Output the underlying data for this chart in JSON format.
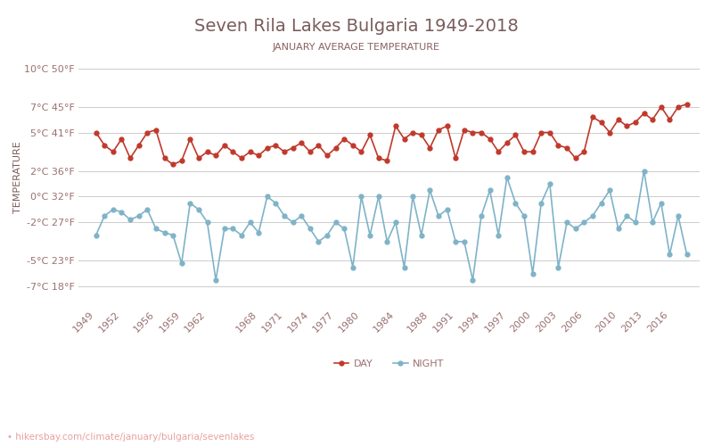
{
  "title": "Seven Rila Lakes Bulgaria 1949-2018",
  "subtitle": "JANUARY AVERAGE TEMPERATURE",
  "ylabel": "TEMPERATURE",
  "footer": "hikersbay.com/climate/january/bulgaria/sevenlakes",
  "years": [
    1949,
    1950,
    1951,
    1952,
    1953,
    1954,
    1955,
    1956,
    1957,
    1958,
    1959,
    1960,
    1961,
    1962,
    1963,
    1964,
    1965,
    1966,
    1967,
    1968,
    1969,
    1970,
    1971,
    1972,
    1973,
    1974,
    1975,
    1976,
    1977,
    1978,
    1979,
    1980,
    1981,
    1982,
    1983,
    1984,
    1985,
    1986,
    1987,
    1988,
    1989,
    1990,
    1991,
    1992,
    1993,
    1994,
    1995,
    1996,
    1997,
    1998,
    1999,
    2000,
    2001,
    2002,
    2003,
    2004,
    2005,
    2006,
    2007,
    2008,
    2009,
    2010,
    2011,
    2012,
    2013,
    2014,
    2015,
    2016,
    2017,
    2018
  ],
  "day_temps": [
    5.0,
    4.0,
    3.5,
    4.5,
    3.0,
    4.0,
    5.0,
    5.2,
    3.0,
    2.5,
    2.8,
    4.5,
    3.0,
    3.5,
    3.2,
    4.0,
    3.5,
    3.0,
    3.5,
    3.2,
    3.8,
    4.0,
    3.5,
    3.8,
    4.2,
    3.5,
    4.0,
    3.2,
    3.8,
    4.5,
    4.0,
    3.5,
    4.8,
    3.0,
    2.8,
    5.5,
    4.5,
    5.0,
    4.8,
    3.8,
    5.2,
    5.5,
    3.0,
    5.2,
    5.0,
    5.0,
    4.5,
    3.5,
    4.2,
    4.8,
    3.5,
    3.5,
    5.0,
    5.0,
    4.0,
    3.8,
    3.0,
    3.5,
    6.2,
    5.8,
    5.0,
    6.0,
    5.5,
    5.8,
    6.5,
    6.0,
    7.0,
    6.0,
    7.0,
    7.2
  ],
  "night_temps": [
    -3.0,
    -1.5,
    -1.0,
    -1.2,
    -1.8,
    -1.5,
    -1.0,
    -2.5,
    -2.8,
    -3.0,
    -5.2,
    -0.5,
    -1.0,
    -2.0,
    -6.5,
    -2.5,
    -2.5,
    -3.0,
    -2.0,
    -2.8,
    0.0,
    -0.5,
    -1.5,
    -2.0,
    -1.5,
    -2.5,
    -3.5,
    -3.0,
    -2.0,
    -2.5,
    -5.5,
    0.0,
    -3.0,
    0.0,
    -3.5,
    -2.0,
    -5.5,
    0.0,
    -3.0,
    0.5,
    -1.5,
    -1.0,
    -3.5,
    -3.5,
    -6.5,
    -1.5,
    0.5,
    -3.0,
    1.5,
    -0.5,
    -1.5,
    -6.0,
    -0.5,
    1.0,
    -5.5,
    -2.0,
    -2.5,
    -2.0,
    -1.5,
    -0.5,
    0.5,
    -2.5,
    -1.5,
    -2.0,
    2.0,
    -2.0,
    -0.5,
    -4.5,
    -1.5,
    -4.5
  ],
  "day_color": "#c0392b",
  "night_color": "#7fb3c8",
  "title_color": "#7a5c5c",
  "subtitle_color": "#8b6060",
  "axis_label_color": "#7a5c5c",
  "tick_color": "#9b7070",
  "grid_color": "#cccccc",
  "bg_color": "#ffffff",
  "yticks_c": [
    -7,
    -5,
    -2,
    0,
    2,
    5,
    7,
    10
  ],
  "yticks_f": [
    18,
    23,
    27,
    32,
    36,
    41,
    45,
    50
  ],
  "xtick_years": [
    1949,
    1952,
    1956,
    1959,
    1962,
    1968,
    1971,
    1974,
    1977,
    1980,
    1984,
    1988,
    1991,
    1994,
    1997,
    2000,
    2003,
    2006,
    2010,
    2013,
    2016
  ],
  "footer_color": "#e8a0a0",
  "legend_night": "NIGHT",
  "legend_day": "DAY"
}
